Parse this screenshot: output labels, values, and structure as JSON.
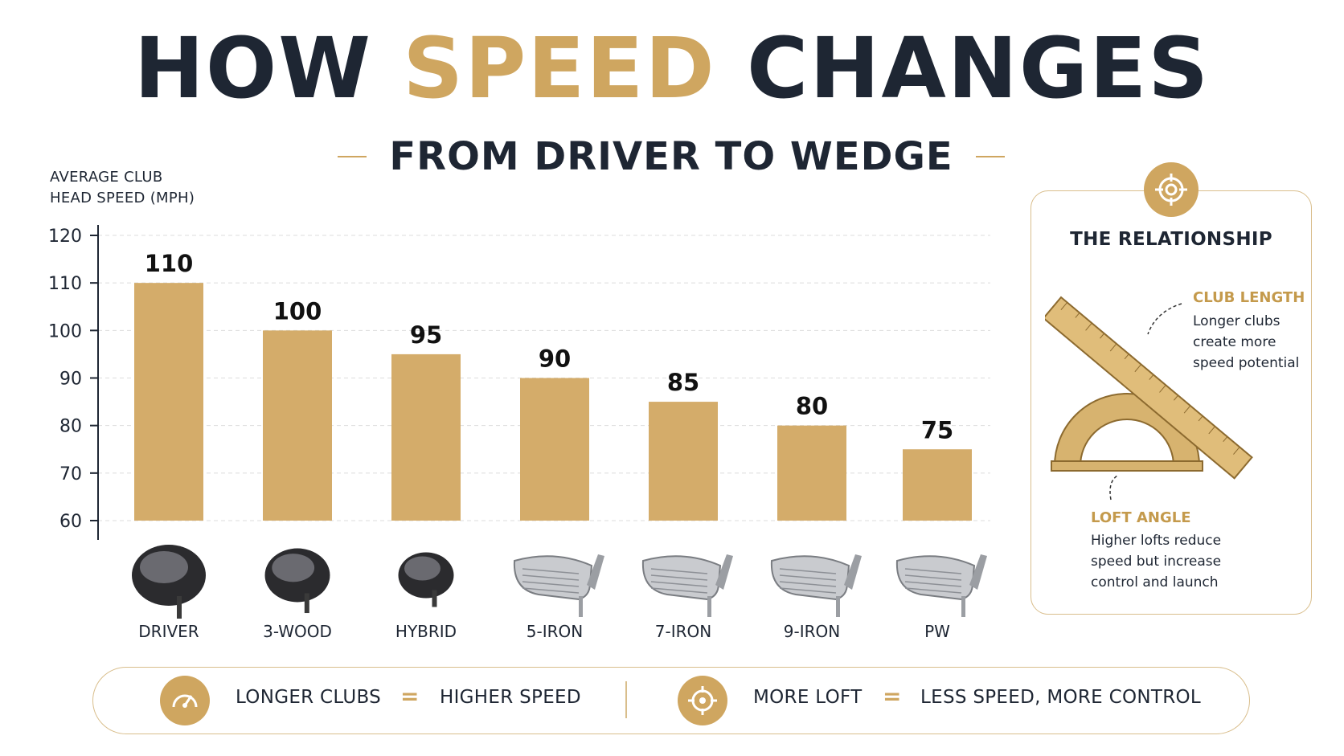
{
  "title": {
    "part1": "HOW ",
    "accent": "SPEED",
    "part2": " CHANGES"
  },
  "subtitle": "FROM DRIVER TO WEDGE",
  "colors": {
    "bar": "#d4ac6a",
    "accent": "#cfa660",
    "text": "#1e2633"
  },
  "chart_data": {
    "type": "bar",
    "categories": [
      "DRIVER",
      "3-WOOD",
      "HYBRID",
      "5-IRON",
      "7-IRON",
      "9-IRON",
      "PW"
    ],
    "values": [
      110,
      100,
      95,
      90,
      85,
      80,
      75
    ],
    "ylabel_line1": "AVERAGE CLUB",
    "ylabel_line2": "HEAD SPEED (MPH)",
    "ylim": [
      60,
      120
    ],
    "yticks": [
      60,
      70,
      80,
      90,
      100,
      110,
      120
    ],
    "grid": true
  },
  "clubs": [
    "driver-icon",
    "wood-icon",
    "hybrid-icon",
    "iron-icon",
    "iron-icon",
    "iron-icon",
    "wedge-icon"
  ],
  "panel": {
    "title": "THE RELATIONSHIP",
    "length_head": "CLUB LENGTH",
    "length_text": "Longer clubs create more speed potential",
    "loft_head": "LOFT ANGLE",
    "loft_text": "Higher lofts reduce speed but increase control and launch"
  },
  "bottom": {
    "left_a": "LONGER CLUBS",
    "left_eq": "=",
    "left_b": "HIGHER SPEED",
    "right_a": "MORE LOFT",
    "right_eq": "=",
    "right_b": "LESS SPEED, MORE CONTROL"
  }
}
